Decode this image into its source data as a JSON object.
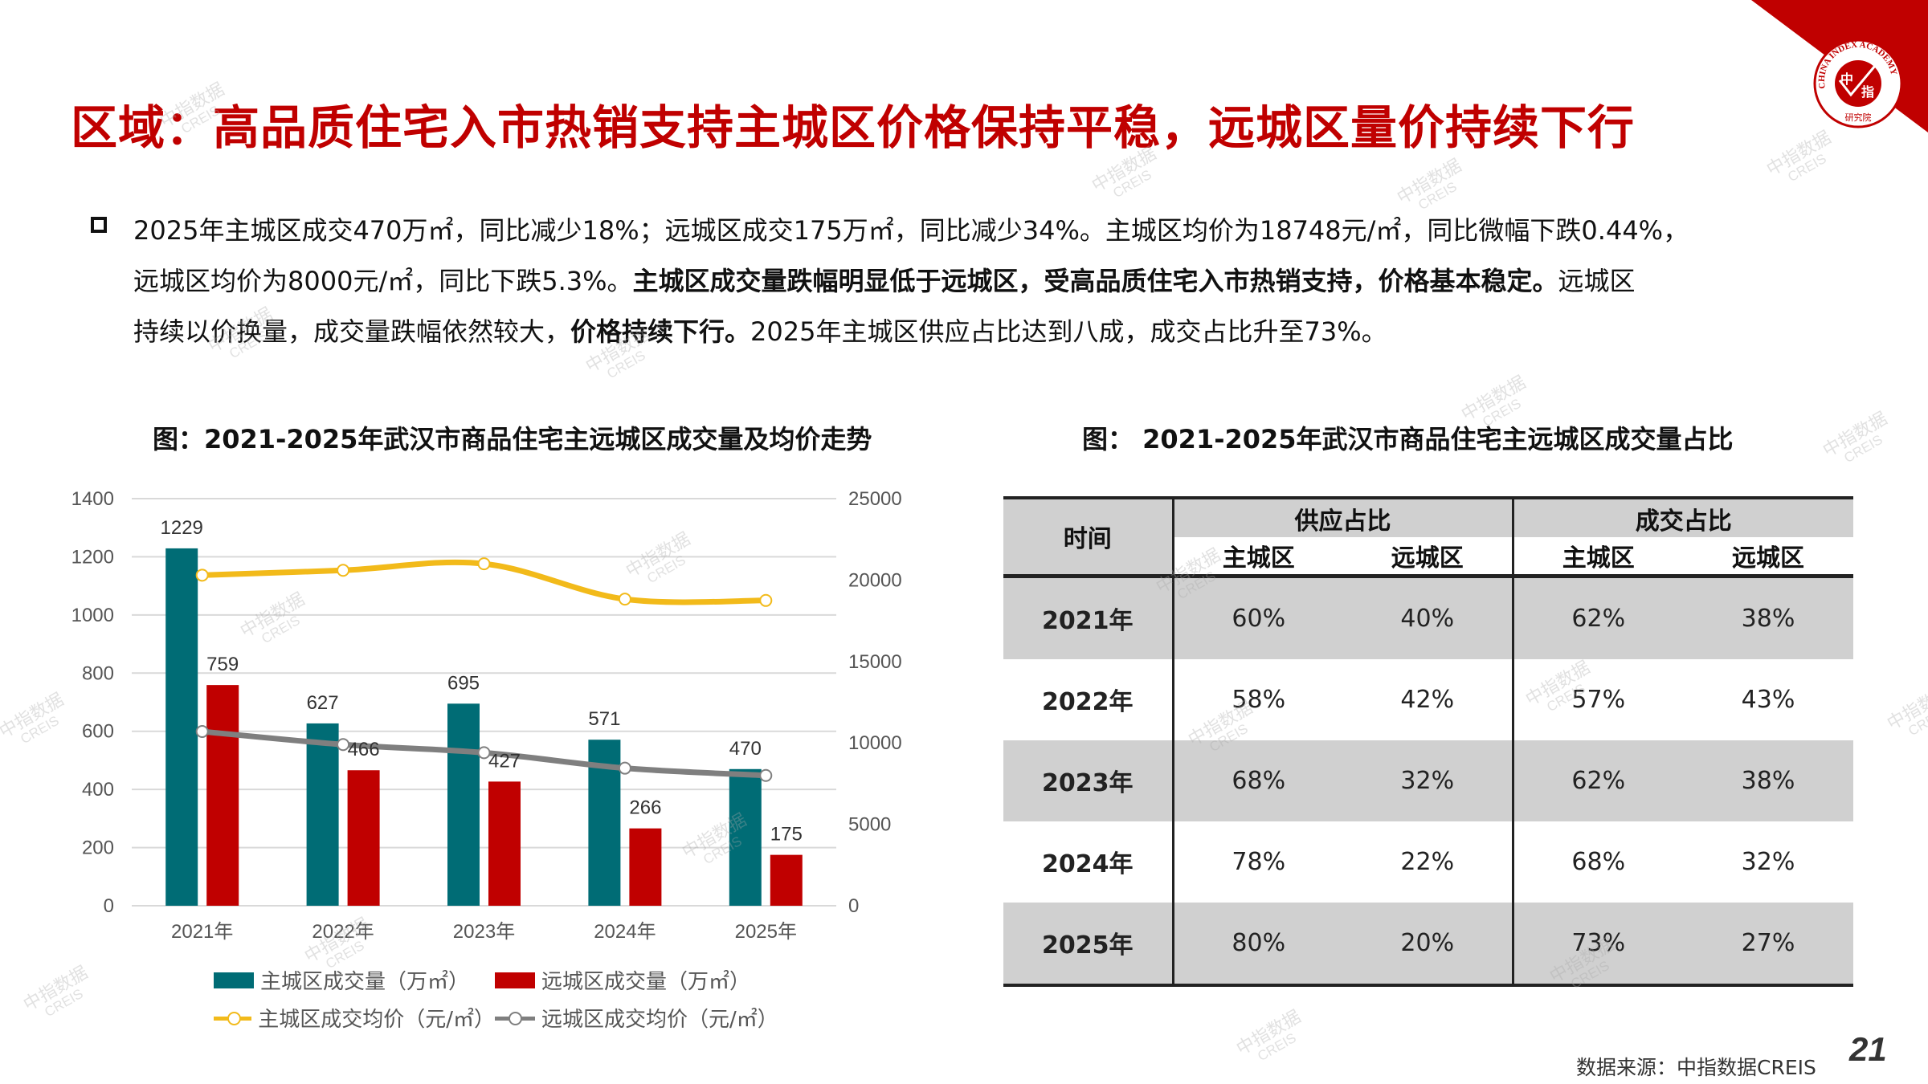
{
  "header": {
    "title": "区域：高品质住宅入市热销支持主城区价格保持平稳，远城区量价持续下行",
    "logo": {
      "outer_text": "CHINA INDEX ACADEMY",
      "center_text_1": "中",
      "center_text_2": "指",
      "bottom_text": "研究院",
      "brand_color": "#C00000"
    }
  },
  "body": {
    "line1": "2025年主城区成交470万㎡，同比减少18%；远城区成交175万㎡，同比减少34%。主城区均价为18748元/㎡，同比微幅下跌0.44%，",
    "line2_a": "远城区均价为8000元/㎡，同比下跌5.3%。",
    "line2_b": "主城区成交量跌幅明显低于远城区，受高品质住宅入市热销支持，价格基本稳定。",
    "line2_c": "远城区",
    "line3_a": "持续以价换量，成交量跌幅依然较大，",
    "line3_b": "价格持续下行。",
    "line3_c": "2025年主城区供应占比达到八成，成交占比升至73%。"
  },
  "watermark": {
    "text": "中指数据",
    "sub": "CREIS"
  },
  "chart_data": [
    {
      "type": "bar",
      "title": "图：2021-2025年武汉市商品住宅主远城区成交量及均价走势",
      "categories": [
        "2021年",
        "2022年",
        "2023年",
        "2024年",
        "2025年"
      ],
      "series": [
        {
          "name": "主城区成交量（万㎡）",
          "type": "bar",
          "axis": "left",
          "color": "#006C75",
          "values": [
            1229,
            627,
            695,
            571,
            470
          ]
        },
        {
          "name": "远城区成交量（万㎡）",
          "type": "bar",
          "axis": "left",
          "color": "#C00000",
          "values": [
            759,
            466,
            427,
            266,
            175
          ]
        },
        {
          "name": "主城区成交均价（元/㎡）",
          "type": "line",
          "axis": "right",
          "color": "#F2BA1A",
          "values": [
            20300,
            20600,
            21000,
            18831,
            18748
          ]
        },
        {
          "name": "远城区成交均价（元/㎡）",
          "type": "line",
          "axis": "right",
          "color": "#7F7F7F",
          "values": [
            10700,
            9900,
            9400,
            8448,
            8000
          ]
        }
      ],
      "left_axis": {
        "min": 0,
        "max": 1400,
        "ticks": [
          "0",
          "200",
          "400",
          "600",
          "800",
          "1000",
          "1200",
          "1400"
        ]
      },
      "right_axis": {
        "min": 0,
        "max": 25000,
        "ticks": [
          "0",
          "5000",
          "10000",
          "15000",
          "20000",
          "25000"
        ]
      },
      "grid": true,
      "legend_position": "bottom",
      "xlabel": "",
      "ylabel": ""
    },
    {
      "type": "table",
      "title": "图： 2021-2025年武汉市商品住宅主远城区成交量占比",
      "header_time": "时间",
      "groups": [
        "供应占比",
        "成交占比"
      ],
      "subheaders": [
        "主城区",
        "远城区",
        "主城区",
        "远城区"
      ],
      "rows": [
        {
          "year": "2021年",
          "values": [
            "60%",
            "40%",
            "62%",
            "38%"
          ]
        },
        {
          "year": "2022年",
          "values": [
            "58%",
            "42%",
            "57%",
            "43%"
          ]
        },
        {
          "year": "2023年",
          "values": [
            "68%",
            "32%",
            "62%",
            "38%"
          ]
        },
        {
          "year": "2024年",
          "values": [
            "78%",
            "22%",
            "68%",
            "32%"
          ]
        },
        {
          "year": "2025年",
          "values": [
            "80%",
            "20%",
            "73%",
            "27%"
          ]
        }
      ]
    }
  ],
  "footer": {
    "source": "数据来源：中指数据CREIS",
    "page_number": "21"
  }
}
